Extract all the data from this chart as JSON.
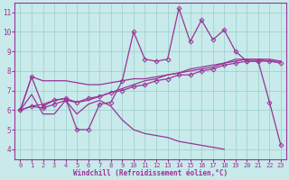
{
  "xlabel": "Windchill (Refroidissement éolien,°C)",
  "bg_color": "#c8eaea",
  "line_color": "#993399",
  "grid_color": "#99cccc",
  "xlim": [
    -0.5,
    23.5
  ],
  "ylim": [
    3.5,
    11.5
  ],
  "xticks": [
    0,
    1,
    2,
    3,
    4,
    5,
    6,
    7,
    8,
    9,
    10,
    11,
    12,
    13,
    14,
    15,
    16,
    17,
    18,
    19,
    20,
    21,
    22,
    23
  ],
  "yticks": [
    4,
    5,
    6,
    7,
    8,
    9,
    10,
    11
  ],
  "series": [
    {
      "y": [
        6.0,
        7.7,
        6.2,
        6.5,
        6.6,
        5.0,
        5.0,
        6.3,
        6.4,
        7.5,
        10.0,
        8.6,
        8.5,
        8.6,
        11.2,
        9.5,
        10.6,
        9.6,
        10.1,
        9.0,
        8.5,
        8.5,
        6.4,
        4.2
      ],
      "marker": "D",
      "markersize": 2.5,
      "linewidth": 0.9
    },
    {
      "y": [
        6.0,
        7.7,
        7.5,
        7.5,
        7.5,
        7.4,
        7.3,
        7.3,
        7.4,
        7.5,
        7.6,
        7.6,
        7.7,
        7.8,
        7.9,
        8.0,
        8.1,
        8.2,
        8.4,
        8.5,
        8.6,
        8.6,
        8.5,
        8.5
      ],
      "marker": null,
      "markersize": 0,
      "linewidth": 0.9
    },
    {
      "y": [
        6.0,
        6.2,
        6.3,
        6.5,
        6.6,
        6.4,
        6.5,
        6.7,
        6.9,
        7.1,
        7.3,
        7.5,
        7.6,
        7.8,
        7.9,
        8.1,
        8.2,
        8.3,
        8.4,
        8.6,
        8.6,
        8.6,
        8.6,
        8.5
      ],
      "marker": null,
      "markersize": 0,
      "linewidth": 0.9
    },
    {
      "y": [
        6.0,
        6.2,
        6.1,
        6.3,
        6.5,
        6.4,
        6.6,
        6.7,
        6.9,
        7.0,
        7.2,
        7.3,
        7.5,
        7.6,
        7.8,
        7.8,
        8.0,
        8.1,
        8.3,
        8.4,
        8.5,
        8.5,
        8.5,
        8.4
      ],
      "marker": "D",
      "markersize": 2.5,
      "linewidth": 0.9
    },
    {
      "y": [
        6.0,
        6.8,
        5.8,
        5.8,
        6.5,
        5.8,
        6.3,
        6.5,
        6.2,
        5.5,
        5.0,
        4.8,
        4.7,
        4.6,
        4.4,
        4.3,
        4.2,
        4.1,
        4.0,
        null,
        null,
        null,
        null,
        null
      ],
      "marker": null,
      "markersize": 0,
      "linewidth": 0.9
    }
  ]
}
